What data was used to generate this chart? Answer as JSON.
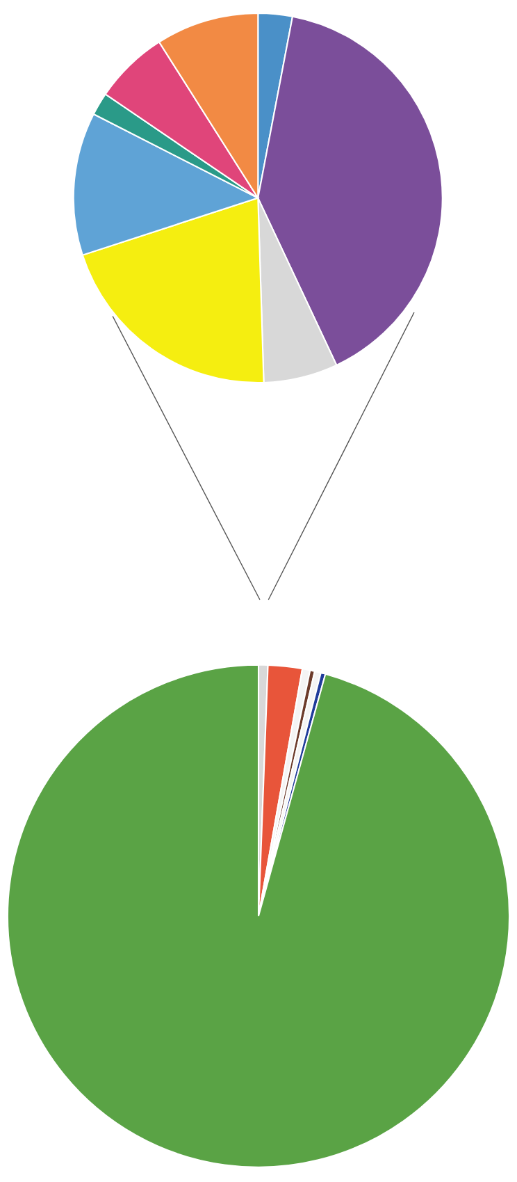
{
  "chart_data": [
    {
      "type": "pie",
      "categories": [
        null,
        null,
        null,
        null,
        null,
        null,
        null,
        null
      ],
      "values": [
        3,
        40,
        6.5,
        20.5,
        12.5,
        2,
        6.5,
        9
      ],
      "colors": [
        "#4a90c8",
        "#7b4e9a",
        "#d8d8d8",
        "#f5ee10",
        "#5fa3d6",
        "#2a9a88",
        "#e0457a",
        "#f28a44"
      ]
    },
    {
      "type": "pie",
      "categories": [
        null,
        null,
        null,
        null,
        null,
        null,
        null
      ],
      "values": [
        0.6,
        2.2,
        0.5,
        0.3,
        0.4,
        0.3,
        95.7
      ],
      "colors": [
        "#d8d8d8",
        "#e8553a",
        "#f4f4f4",
        "#6b3a2a",
        "#f4f4f4",
        "#1f3b9a",
        "#5aa345"
      ]
    }
  ]
}
